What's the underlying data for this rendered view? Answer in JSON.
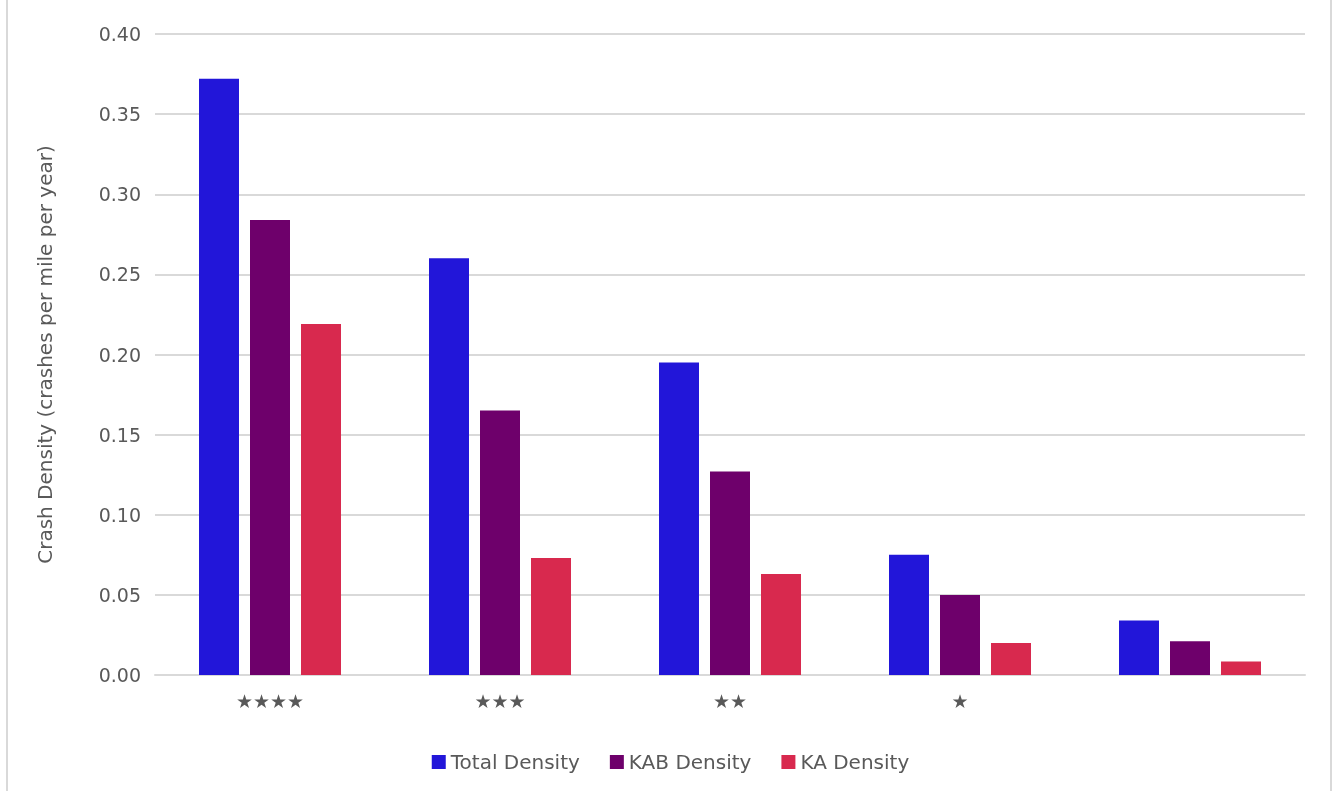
{
  "chart_data": {
    "type": "bar",
    "ylabel": "Crash Density (crashes per mile per year)",
    "categories": [
      "★★★★",
      "★★★",
      "★★",
      "★",
      null
    ],
    "series": [
      {
        "name": "Total Density",
        "color": "#2216d9",
        "values": [
          0.372,
          0.26,
          0.195,
          0.075,
          0.034
        ]
      },
      {
        "name": "KAB Density",
        "color": "#6e006b",
        "values": [
          0.284,
          0.165,
          0.127,
          0.05,
          0.021
        ]
      },
      {
        "name": "KA Density",
        "color": "#d8294e",
        "values": [
          0.219,
          0.073,
          0.063,
          0.02,
          0.0085
        ]
      }
    ],
    "ylim": [
      0,
      0.4
    ],
    "yticks": [
      {
        "value": 0,
        "label": "0.00"
      },
      {
        "value": 0.05,
        "label": "0.05"
      },
      {
        "value": 0.1,
        "label": "0.10"
      },
      {
        "value": 0.15,
        "label": "0.15"
      },
      {
        "value": 0.2,
        "label": "0.20"
      },
      {
        "value": 0.25,
        "label": "0.25"
      },
      {
        "value": 0.3,
        "label": "0.30"
      },
      {
        "value": 0.35,
        "label": "0.35"
      },
      {
        "value": 0.4,
        "label": "0.40"
      }
    ],
    "grid": "y",
    "legend": "bottom"
  }
}
